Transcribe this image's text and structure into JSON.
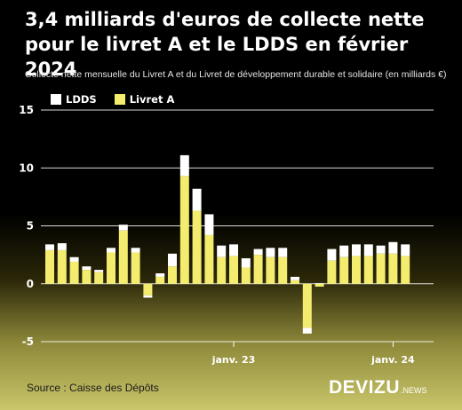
{
  "title": "3,4 milliards d'euros de collecte nette pour le livret A et le LDDS en février 2024",
  "subtitle": "Collecte nette mensuelle du Livret A et du Livret de développement durable et solidaire (en milliards €)",
  "source": "Source : Caisse des Dépôts",
  "brand": {
    "name": "DEVIZU",
    "suffix": ".NEWS"
  },
  "colors": {
    "ldds": "#ffffff",
    "livret_a": "#f3ec6e",
    "axis": "#ffffff",
    "grid": "#ffffff"
  },
  "chart_data": {
    "type": "bar",
    "stacked": true,
    "x": [
      "",
      "",
      "",
      "",
      "",
      "",
      "",
      "",
      "",
      "",
      "",
      "",
      "",
      "",
      "",
      "janv. 23",
      "",
      "",
      "",
      "",
      "",
      "",
      "",
      "",
      "",
      "",
      "",
      "",
      "janv. 24",
      ""
    ],
    "ylim": [
      -5,
      15
    ],
    "yticks": [
      15,
      10,
      5,
      0,
      -5
    ],
    "grid": true,
    "legend_position": "top-left",
    "series": [
      {
        "name": "LDDS",
        "values": [
          0.5,
          0.6,
          0.4,
          0.3,
          0.2,
          0.4,
          0.5,
          0.4,
          -0.2,
          0.3,
          1.1,
          1.8,
          1.9,
          1.8,
          1.0,
          1.0,
          0.8,
          0.5,
          0.8,
          0.8,
          0.3,
          -0.5,
          0.05,
          1.0,
          1.0,
          1.0,
          1.0,
          0.7,
          1.0,
          1.0
        ]
      },
      {
        "name": "Livret A",
        "values": [
          2.9,
          2.9,
          1.9,
          1.2,
          1.0,
          2.7,
          4.6,
          2.7,
          -1.0,
          0.6,
          1.5,
          9.3,
          6.3,
          4.2,
          2.3,
          2.4,
          1.4,
          2.5,
          2.3,
          2.3,
          0.3,
          -3.8,
          -0.25,
          2.0,
          2.3,
          2.4,
          2.4,
          2.6,
          2.6,
          2.4
        ]
      }
    ]
  }
}
